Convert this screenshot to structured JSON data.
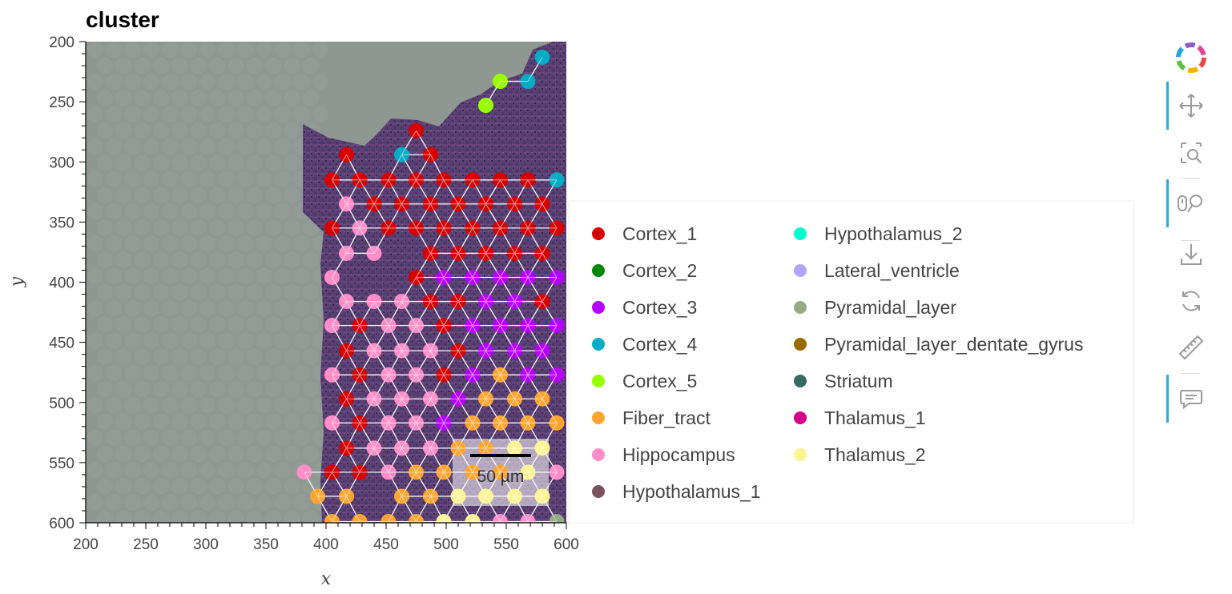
{
  "chart_data": {
    "type": "scatter",
    "title": "cluster",
    "xlabel": "x",
    "ylabel": "y",
    "xlim": [
      200,
      600
    ],
    "ylim": [
      600,
      200
    ],
    "y_axis_inverted": true,
    "x_ticks": [
      200,
      250,
      300,
      350,
      400,
      450,
      500,
      550,
      600
    ],
    "y_ticks": [
      200,
      250,
      300,
      350,
      400,
      450,
      500,
      550,
      600
    ],
    "grid": false,
    "background": "H&E tissue image",
    "legend_position": "right",
    "scale_bar_label": "50 µm",
    "spot_grid": {
      "row_spacing_y": 20.2,
      "col_spacing_x": 23.4,
      "connections": "nearest-neighbour triangular mesh"
    },
    "series": [
      {
        "name": "Cortex_1",
        "color": "#d60000"
      },
      {
        "name": "Cortex_2",
        "color": "#018700"
      },
      {
        "name": "Cortex_3",
        "color": "#b500ff"
      },
      {
        "name": "Cortex_4",
        "color": "#05acc6"
      },
      {
        "name": "Cortex_5",
        "color": "#97ff00"
      },
      {
        "name": "Fiber_tract",
        "color": "#ffa52f"
      },
      {
        "name": "Hippocampus",
        "color": "#ff8ec8"
      },
      {
        "name": "Hypothalamus_1",
        "color": "#79525e"
      },
      {
        "name": "Hypothalamus_2",
        "color": "#00fdcf"
      },
      {
        "name": "Lateral_ventricle",
        "color": "#afa5ff"
      },
      {
        "name": "Pyramidal_layer",
        "color": "#93ac83"
      },
      {
        "name": "Pyramidal_layer_dentate_gyrus",
        "color": "#9a6900"
      },
      {
        "name": "Striatum",
        "color": "#366962"
      },
      {
        "name": "Thalamus_1",
        "color": "#d3008c"
      },
      {
        "name": "Thalamus_2",
        "color": "#fdf490"
      }
    ],
    "points": [
      {
        "x": 580,
        "y": 213,
        "c": "Cortex_4"
      },
      {
        "x": 545,
        "y": 233,
        "c": "Cortex_5"
      },
      {
        "x": 568,
        "y": 233,
        "c": "Cortex_4"
      },
      {
        "x": 533,
        "y": 253,
        "c": "Cortex_5"
      },
      {
        "x": 475,
        "y": 274,
        "c": "Cortex_1"
      },
      {
        "x": 417,
        "y": 294,
        "c": "Cortex_1"
      },
      {
        "x": 463,
        "y": 294,
        "c": "Cortex_4"
      },
      {
        "x": 487,
        "y": 294,
        "c": "Cortex_1"
      },
      {
        "x": 405,
        "y": 315,
        "c": "Cortex_1"
      },
      {
        "x": 428,
        "y": 315,
        "c": "Cortex_1"
      },
      {
        "x": 452,
        "y": 315,
        "c": "Cortex_1"
      },
      {
        "x": 475,
        "y": 315,
        "c": "Cortex_1"
      },
      {
        "x": 498,
        "y": 315,
        "c": "Cortex_1"
      },
      {
        "x": 522,
        "y": 315,
        "c": "Cortex_1"
      },
      {
        "x": 545,
        "y": 315,
        "c": "Cortex_1"
      },
      {
        "x": 568,
        "y": 315,
        "c": "Cortex_1"
      },
      {
        "x": 592,
        "y": 315,
        "c": "Cortex_4"
      },
      {
        "x": 417,
        "y": 335,
        "c": "Hippocampus"
      },
      {
        "x": 440,
        "y": 335,
        "c": "Cortex_1"
      },
      {
        "x": 463,
        "y": 335,
        "c": "Cortex_1"
      },
      {
        "x": 487,
        "y": 335,
        "c": "Cortex_1"
      },
      {
        "x": 510,
        "y": 335,
        "c": "Cortex_1"
      },
      {
        "x": 533,
        "y": 335,
        "c": "Cortex_1"
      },
      {
        "x": 557,
        "y": 335,
        "c": "Cortex_1"
      },
      {
        "x": 580,
        "y": 335,
        "c": "Cortex_1"
      },
      {
        "x": 405,
        "y": 355,
        "c": "Cortex_1"
      },
      {
        "x": 428,
        "y": 355,
        "c": "Hippocampus"
      },
      {
        "x": 452,
        "y": 355,
        "c": "Cortex_1"
      },
      {
        "x": 475,
        "y": 355,
        "c": "Cortex_1"
      },
      {
        "x": 498,
        "y": 355,
        "c": "Cortex_1"
      },
      {
        "x": 522,
        "y": 355,
        "c": "Cortex_1"
      },
      {
        "x": 545,
        "y": 355,
        "c": "Cortex_1"
      },
      {
        "x": 568,
        "y": 355,
        "c": "Cortex_1"
      },
      {
        "x": 592,
        "y": 355,
        "c": "Cortex_1"
      },
      {
        "x": 417,
        "y": 376,
        "c": "Hippocampus"
      },
      {
        "x": 440,
        "y": 376,
        "c": "Hippocampus"
      },
      {
        "x": 487,
        "y": 376,
        "c": "Cortex_1"
      },
      {
        "x": 510,
        "y": 376,
        "c": "Cortex_1"
      },
      {
        "x": 533,
        "y": 376,
        "c": "Cortex_1"
      },
      {
        "x": 557,
        "y": 376,
        "c": "Cortex_1"
      },
      {
        "x": 580,
        "y": 376,
        "c": "Cortex_1"
      },
      {
        "x": 405,
        "y": 396,
        "c": "Hippocampus"
      },
      {
        "x": 475,
        "y": 396,
        "c": "Cortex_1"
      },
      {
        "x": 498,
        "y": 396,
        "c": "Cortex_3"
      },
      {
        "x": 522,
        "y": 396,
        "c": "Cortex_3"
      },
      {
        "x": 545,
        "y": 396,
        "c": "Cortex_3"
      },
      {
        "x": 568,
        "y": 396,
        "c": "Cortex_3"
      },
      {
        "x": 592,
        "y": 396,
        "c": "Cortex_3"
      },
      {
        "x": 417,
        "y": 416,
        "c": "Hippocampus"
      },
      {
        "x": 440,
        "y": 416,
        "c": "Hippocampus"
      },
      {
        "x": 463,
        "y": 416,
        "c": "Hippocampus"
      },
      {
        "x": 487,
        "y": 416,
        "c": "Cortex_1"
      },
      {
        "x": 510,
        "y": 416,
        "c": "Cortex_1"
      },
      {
        "x": 533,
        "y": 416,
        "c": "Cortex_3"
      },
      {
        "x": 557,
        "y": 416,
        "c": "Cortex_3"
      },
      {
        "x": 580,
        "y": 416,
        "c": "Cortex_1"
      },
      {
        "x": 405,
        "y": 436,
        "c": "Hippocampus"
      },
      {
        "x": 428,
        "y": 436,
        "c": "Cortex_1"
      },
      {
        "x": 452,
        "y": 436,
        "c": "Hippocampus"
      },
      {
        "x": 475,
        "y": 436,
        "c": "Hippocampus"
      },
      {
        "x": 498,
        "y": 436,
        "c": "Cortex_1"
      },
      {
        "x": 522,
        "y": 436,
        "c": "Cortex_3"
      },
      {
        "x": 545,
        "y": 436,
        "c": "Cortex_3"
      },
      {
        "x": 568,
        "y": 436,
        "c": "Cortex_3"
      },
      {
        "x": 592,
        "y": 436,
        "c": "Cortex_3"
      },
      {
        "x": 417,
        "y": 457,
        "c": "Cortex_1"
      },
      {
        "x": 440,
        "y": 457,
        "c": "Hippocampus"
      },
      {
        "x": 463,
        "y": 457,
        "c": "Hippocampus"
      },
      {
        "x": 487,
        "y": 457,
        "c": "Hippocampus"
      },
      {
        "x": 510,
        "y": 457,
        "c": "Cortex_1"
      },
      {
        "x": 533,
        "y": 457,
        "c": "Cortex_3"
      },
      {
        "x": 557,
        "y": 457,
        "c": "Cortex_3"
      },
      {
        "x": 580,
        "y": 457,
        "c": "Cortex_3"
      },
      {
        "x": 405,
        "y": 477,
        "c": "Hippocampus"
      },
      {
        "x": 428,
        "y": 477,
        "c": "Cortex_1"
      },
      {
        "x": 452,
        "y": 477,
        "c": "Hippocampus"
      },
      {
        "x": 475,
        "y": 477,
        "c": "Hippocampus"
      },
      {
        "x": 498,
        "y": 477,
        "c": "Cortex_1"
      },
      {
        "x": 522,
        "y": 477,
        "c": "Cortex_3"
      },
      {
        "x": 545,
        "y": 477,
        "c": "Fiber_tract"
      },
      {
        "x": 568,
        "y": 477,
        "c": "Cortex_3"
      },
      {
        "x": 592,
        "y": 477,
        "c": "Cortex_3"
      },
      {
        "x": 417,
        "y": 497,
        "c": "Cortex_1"
      },
      {
        "x": 440,
        "y": 497,
        "c": "Hippocampus"
      },
      {
        "x": 463,
        "y": 497,
        "c": "Hippocampus"
      },
      {
        "x": 487,
        "y": 497,
        "c": "Hippocampus"
      },
      {
        "x": 510,
        "y": 497,
        "c": "Cortex_3"
      },
      {
        "x": 533,
        "y": 497,
        "c": "Fiber_tract"
      },
      {
        "x": 557,
        "y": 497,
        "c": "Fiber_tract"
      },
      {
        "x": 580,
        "y": 497,
        "c": "Fiber_tract"
      },
      {
        "x": 405,
        "y": 517,
        "c": "Hippocampus"
      },
      {
        "x": 428,
        "y": 517,
        "c": "Cortex_1"
      },
      {
        "x": 452,
        "y": 517,
        "c": "Hippocampus"
      },
      {
        "x": 475,
        "y": 517,
        "c": "Hippocampus"
      },
      {
        "x": 498,
        "y": 517,
        "c": "Cortex_3"
      },
      {
        "x": 522,
        "y": 517,
        "c": "Fiber_tract"
      },
      {
        "x": 545,
        "y": 517,
        "c": "Fiber_tract"
      },
      {
        "x": 568,
        "y": 517,
        "c": "Fiber_tract"
      },
      {
        "x": 592,
        "y": 517,
        "c": "Fiber_tract"
      },
      {
        "x": 417,
        "y": 538,
        "c": "Cortex_1"
      },
      {
        "x": 440,
        "y": 538,
        "c": "Hippocampus"
      },
      {
        "x": 463,
        "y": 538,
        "c": "Hippocampus"
      },
      {
        "x": 487,
        "y": 538,
        "c": "Hippocampus"
      },
      {
        "x": 510,
        "y": 538,
        "c": "Fiber_tract"
      },
      {
        "x": 533,
        "y": 538,
        "c": "Fiber_tract"
      },
      {
        "x": 557,
        "y": 538,
        "c": "Thalamus_2"
      },
      {
        "x": 580,
        "y": 538,
        "c": "Thalamus_2"
      },
      {
        "x": 382,
        "y": 558,
        "c": "Hippocampus"
      },
      {
        "x": 405,
        "y": 558,
        "c": "Cortex_1"
      },
      {
        "x": 428,
        "y": 558,
        "c": "Cortex_1"
      },
      {
        "x": 452,
        "y": 558,
        "c": "Hippocampus"
      },
      {
        "x": 475,
        "y": 558,
        "c": "Fiber_tract"
      },
      {
        "x": 498,
        "y": 558,
        "c": "Fiber_tract"
      },
      {
        "x": 522,
        "y": 558,
        "c": "Fiber_tract"
      },
      {
        "x": 545,
        "y": 558,
        "c": "Fiber_tract"
      },
      {
        "x": 568,
        "y": 558,
        "c": "Thalamus_2"
      },
      {
        "x": 592,
        "y": 558,
        "c": "Hippocampus"
      },
      {
        "x": 393,
        "y": 578,
        "c": "Fiber_tract"
      },
      {
        "x": 417,
        "y": 578,
        "c": "Fiber_tract"
      },
      {
        "x": 463,
        "y": 578,
        "c": "Fiber_tract"
      },
      {
        "x": 487,
        "y": 578,
        "c": "Fiber_tract"
      },
      {
        "x": 510,
        "y": 578,
        "c": "Thalamus_2"
      },
      {
        "x": 533,
        "y": 578,
        "c": "Thalamus_2"
      },
      {
        "x": 557,
        "y": 578,
        "c": "Thalamus_2"
      },
      {
        "x": 580,
        "y": 578,
        "c": "Thalamus_2"
      },
      {
        "x": 405,
        "y": 599,
        "c": "Fiber_tract"
      },
      {
        "x": 428,
        "y": 599,
        "c": "Fiber_tract"
      },
      {
        "x": 452,
        "y": 599,
        "c": "Fiber_tract"
      },
      {
        "x": 475,
        "y": 599,
        "c": "Fiber_tract"
      },
      {
        "x": 498,
        "y": 599,
        "c": "Thalamus_2"
      },
      {
        "x": 522,
        "y": 599,
        "c": "Thalamus_2"
      },
      {
        "x": 545,
        "y": 599,
        "c": "Hippocampus"
      },
      {
        "x": 568,
        "y": 599,
        "c": "Hippocampus"
      },
      {
        "x": 592,
        "y": 599,
        "c": "Pyramidal_layer"
      }
    ]
  },
  "toolbar": {
    "tools": [
      {
        "name": "bokeh-logo",
        "icon": "bokeh-logo",
        "active": false
      },
      {
        "name": "pan-tool",
        "icon": "pan-icon",
        "active": true
      },
      {
        "name": "box-zoom-tool",
        "icon": "box-zoom-icon",
        "active": false
      },
      {
        "name": "wheel-zoom-tool",
        "icon": "wheel-zoom-icon",
        "active": true
      },
      {
        "name": "save-tool",
        "icon": "save-icon",
        "active": false
      },
      {
        "name": "reset-tool",
        "icon": "reset-icon",
        "active": false
      },
      {
        "name": "measure-tool",
        "icon": "ruler-icon",
        "active": false
      },
      {
        "name": "hover-tool",
        "icon": "hover-icon",
        "active": true
      }
    ]
  }
}
